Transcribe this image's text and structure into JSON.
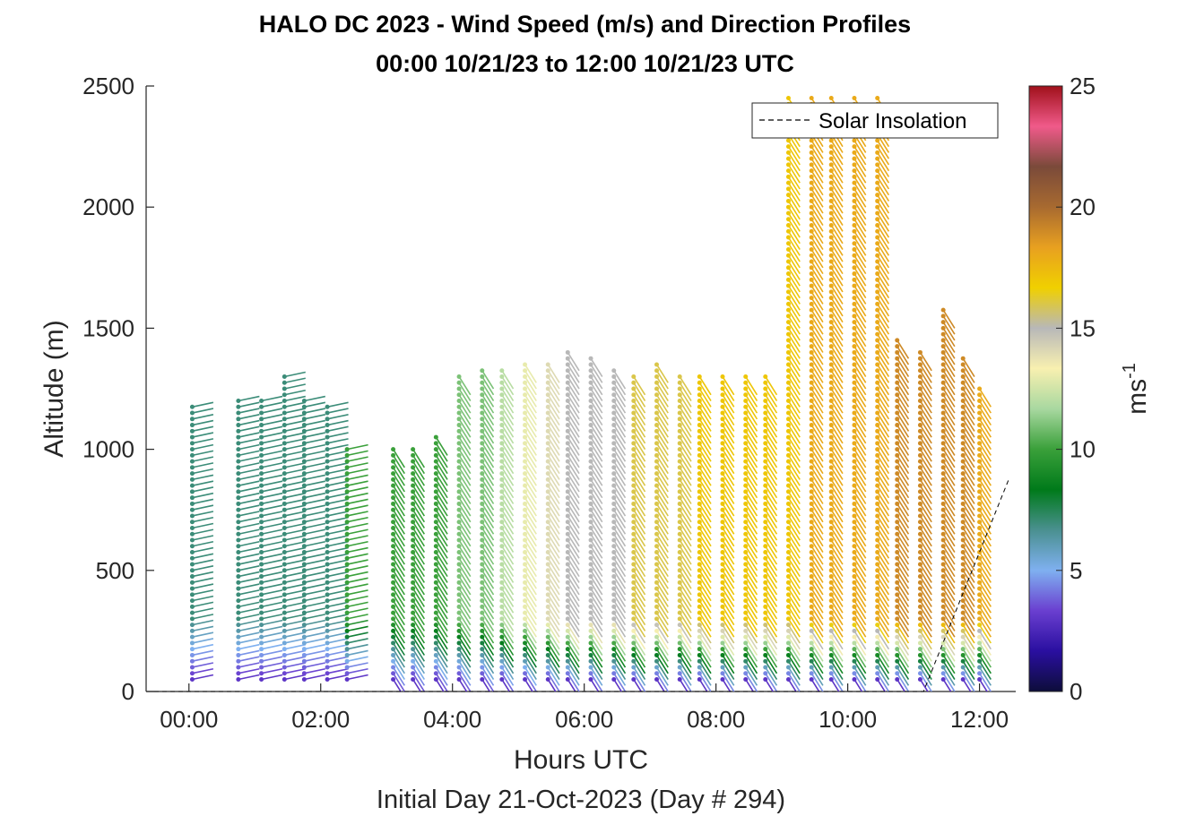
{
  "chart_data": {
    "type": "scatter",
    "title": "HALO DC 2023 - Wind Speed (m/s) and Direction Profiles",
    "subtitle": "00:00 10/21/23 to 12:00 10/21/23  UTC",
    "xlabel": "Hours UTC",
    "ylabel": "Altitude (m)",
    "footer": "Initial Day 21-Oct-2023 (Day # 294)",
    "x_ticks": [
      "00:00",
      "02:00",
      "04:00",
      "06:00",
      "08:00",
      "10:00",
      "12:00"
    ],
    "x_tick_values": [
      0,
      2,
      4,
      6,
      8,
      10,
      12
    ],
    "y_ticks": [
      "0",
      "500",
      "1000",
      "1500",
      "2000",
      "2500"
    ],
    "y_tick_values": [
      0,
      500,
      1000,
      1500,
      2000,
      2500
    ],
    "xlim": [
      -0.65,
      12.55
    ],
    "ylim": [
      0,
      2500
    ],
    "grid": false,
    "legend": {
      "entries": [
        "Solar Insolation"
      ],
      "placement": "top-right"
    },
    "colorbar": {
      "label": "ms",
      "label_superscript": "-1",
      "range": [
        0,
        25
      ],
      "ticks": [
        "0",
        "5",
        "10",
        "15",
        "20",
        "25"
      ],
      "tick_values": [
        0,
        5,
        10,
        15,
        20,
        25
      ],
      "colors": [
        "#0d0d3a",
        "#2a0fa0",
        "#6a3fd0",
        "#7fb0f0",
        "#4a9090",
        "#007a1a",
        "#3aa03a",
        "#a8d8a0",
        "#f8f0b0",
        "#b8b8b8",
        "#f0d000",
        "#e8a020",
        "#a86a30",
        "#7a4a3a",
        "#f05a8a",
        "#a0101a"
      ]
    },
    "profile_times": [
      0.05,
      0.75,
      1.1,
      1.45,
      1.75,
      2.1,
      2.4,
      3.1,
      3.4,
      3.75,
      4.1,
      4.45,
      4.75,
      5.1,
      5.45,
      5.75,
      6.1,
      6.45,
      6.75,
      7.1,
      7.45,
      7.75,
      8.1,
      8.45,
      8.75,
      9.1,
      9.45,
      9.75,
      10.1,
      10.45,
      10.75,
      11.1,
      11.45,
      11.75,
      12.0
    ],
    "profile_top_altitude_m": [
      1180,
      1200,
      1220,
      1300,
      1210,
      1180,
      1000,
      1020,
      1000,
      1050,
      1320,
      1330,
      1330,
      1350,
      1360,
      1400,
      1380,
      1330,
      1320,
      1350,
      1320,
      1320,
      1300,
      1320,
      1300,
      2470,
      2470,
      2470,
      2470,
      2470,
      1470,
      1400,
      1580,
      1380,
      1260
    ],
    "speed_model": {
      "surface_m_s": [
        3,
        3,
        3,
        3,
        3,
        3,
        3,
        3,
        3,
        3,
        3,
        3,
        3,
        3,
        3,
        3,
        3,
        3,
        3,
        3,
        3,
        3,
        3,
        3,
        3,
        3,
        3,
        3,
        3,
        3,
        3,
        3,
        3,
        3,
        3
      ],
      "low_level_jet_m_s": [
        7,
        7,
        7,
        7,
        7,
        7,
        10,
        10,
        10,
        10,
        11,
        11,
        12,
        13,
        14,
        15,
        15,
        15,
        16,
        16,
        16,
        17,
        17,
        17,
        17,
        17,
        18,
        18,
        18,
        18,
        19,
        19,
        19,
        19,
        18
      ]
    },
    "solar_insolation": {
      "x": [
        -0.65,
        11.15,
        12.45
      ],
      "y": [
        0,
        0,
        880
      ]
    }
  }
}
